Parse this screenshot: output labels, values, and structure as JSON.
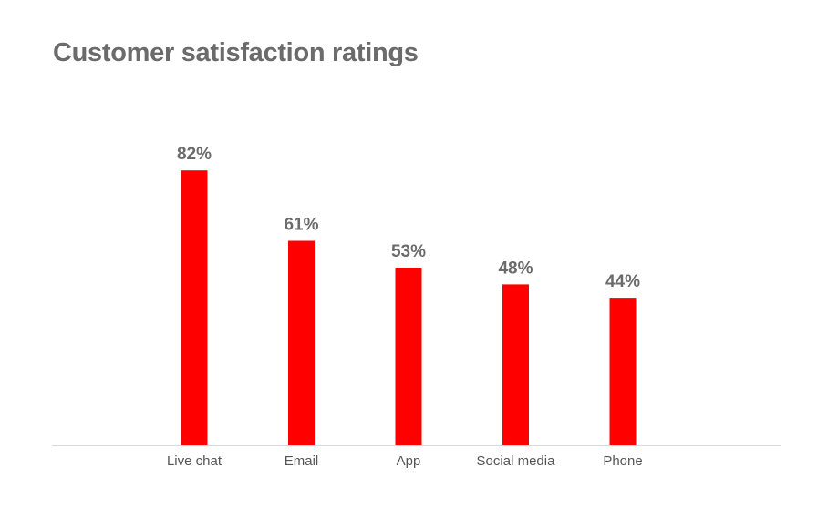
{
  "chart_data": {
    "type": "bar",
    "title": "Customer satisfaction ratings",
    "categories": [
      "Live chat",
      "Email",
      "App",
      "Social media",
      "Phone"
    ],
    "values": [
      82,
      61,
      53,
      48,
      44
    ],
    "value_labels": [
      "82%",
      "61%",
      "53%",
      "48%",
      "44%"
    ],
    "xlabel": "",
    "ylabel": "",
    "ylim": [
      0,
      100
    ],
    "grid": false,
    "legend": "none",
    "bar_color": "#ff0000",
    "axis_color": "#d9d9d9",
    "text_color": "#6b6b6b"
  }
}
